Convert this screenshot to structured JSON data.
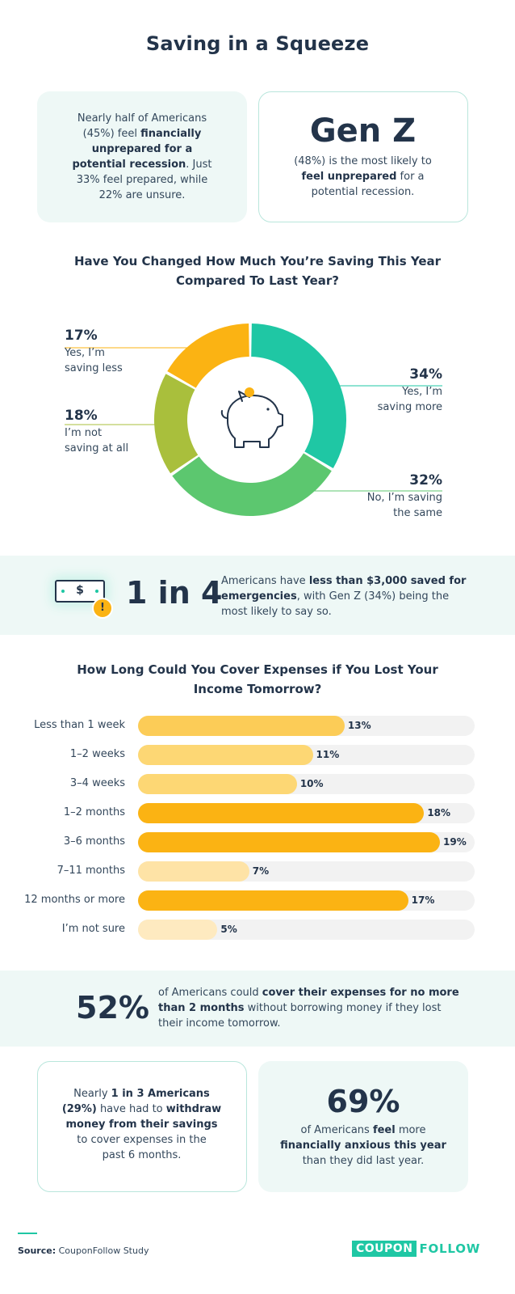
{
  "title": "Saving in a Squeeze",
  "card1": {
    "t1": "Nearly half of Americans",
    "t2a": "(45%) feel ",
    "t2b": "financially",
    "t3": "unprepared for a",
    "t4a": "potential recession",
    "t4b": ". Just",
    "t5": "33% feel prepared, while",
    "t6": "22% are unsure."
  },
  "card2": {
    "big": "Gen Z",
    "t1": "(48%) is the most likely to",
    "t2a": "feel unprepared",
    "t2b": " for a",
    "t3": "potential recession."
  },
  "pie_section": {
    "title_line1": "Have You Changed How Much You’re Saving This Year",
    "title_line2": "Compared To Last Year?"
  },
  "band1": {
    "icon_symbol": "$",
    "icon_alert": "!",
    "big": "1 in 4",
    "t1a": "Americans have ",
    "t1b": "less than $3,000 saved for",
    "t2a": "emergencies",
    "t2b": ", with Gen Z (34%) being the",
    "t3": "most likely to say so."
  },
  "bar_section": {
    "title_line1": "How Long Could You Cover Expenses if You Lost Your",
    "title_line2": "Income Tomorrow?"
  },
  "band2": {
    "big": "52%",
    "t1a": "of Americans could ",
    "t1b": "cover their expenses for no more",
    "t2a": "than 2 months",
    "t2b": " without borrowing money if they lost",
    "t3": "their income tomorrow."
  },
  "card3": {
    "t1a": "Nearly ",
    "t1b": "1 in 3 Americans",
    "t2a": "(29%)",
    "t2b": " have had to ",
    "t2c": "withdraw",
    "t3": "money from their savings",
    "t4": "to cover expenses in the",
    "t5": "past 6 months."
  },
  "card4": {
    "big": "69%",
    "t1a": "of Americans ",
    "t1b": "feel",
    "t1c": " more",
    "t2": "financially anxious this year",
    "t3": "than they did last year."
  },
  "footer": {
    "source_label": "Source:",
    "source_text": " CouponFollow Study",
    "logo_a": "COUPON",
    "logo_b": "FOLLOW"
  },
  "colors": {
    "teal": "#1fc7a4",
    "green": "#5cc76f",
    "olive": "#a9bf3c",
    "gold": "#fbb313",
    "bar_track": "#f2f2f2"
  },
  "chart_data": [
    {
      "type": "pie",
      "title": "Have You Changed How Much You’re Saving This Year Compared To Last Year?",
      "donut": true,
      "slices": [
        {
          "label_line1": "Yes, I’m",
          "label_line2": "saving more",
          "value": 34,
          "pct_label": "34%",
          "color": "#1fc7a4"
        },
        {
          "label_line1": "No, I’m saving",
          "label_line2": "the same",
          "value": 32,
          "pct_label": "32%",
          "color": "#5cc76f"
        },
        {
          "label_line1": "I’m not",
          "label_line2": "saving at all",
          "value": 18,
          "pct_label": "18%",
          "color": "#a9bf3c"
        },
        {
          "label_line1": "Yes, I’m",
          "label_line2": "saving less",
          "value": 17,
          "pct_label": "17%",
          "color": "#fbb313"
        }
      ],
      "center_icon": "piggy-bank-icon"
    },
    {
      "type": "bar",
      "orientation": "horizontal",
      "title": "How Long Could You Cover Expenses if You Lost Your Income Tomorrow?",
      "categories": [
        "Less than 1 week",
        "1–2 weeks",
        "3–4 weeks",
        "1–2 months",
        "3–6 months",
        "7–11 months",
        "12 months or more",
        "I’m not sure"
      ],
      "values": [
        13,
        11,
        10,
        18,
        19,
        7,
        17,
        5
      ],
      "value_labels": [
        "13%",
        "11%",
        "10%",
        "18%",
        "19%",
        "7%",
        "17%",
        "5%"
      ],
      "colors": [
        "#fccc57",
        "#fdd774",
        "#fdd774",
        "#fbb313",
        "#fbb313",
        "#fee3a6",
        "#fbb313",
        "#feeac0"
      ],
      "xlim": [
        0,
        19
      ]
    }
  ]
}
